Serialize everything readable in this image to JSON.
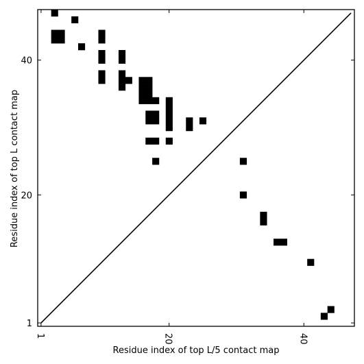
{
  "chart_data": {
    "type": "heatmap",
    "title": "",
    "xlabel": "Residue index of top L/5 contact map",
    "ylabel": "Residue index of top L contact map",
    "xlim": [
      0.5,
      47.5
    ],
    "ylim": [
      0.5,
      47.5
    ],
    "xticks": [
      1,
      20,
      40
    ],
    "yticks": [
      1,
      20,
      40
    ],
    "xtick_labels": [
      "1",
      "20",
      "40"
    ],
    "ytick_labels": [
      "1",
      "20",
      "40"
    ],
    "xtick_rotation": "vertical",
    "diagonal": "line from (1,1) to (47,47)",
    "cell_color": "#000000",
    "background_color": "#ffffff",
    "upper_triangle_contacts_top_L": [
      [
        3,
        47
      ],
      [
        3,
        44
      ],
      [
        3,
        43
      ],
      [
        4,
        44
      ],
      [
        4,
        43
      ],
      [
        6,
        46
      ],
      [
        7,
        42
      ],
      [
        10,
        44
      ],
      [
        10,
        43
      ],
      [
        10,
        41
      ],
      [
        10,
        40
      ],
      [
        10,
        38
      ],
      [
        10,
        37
      ],
      [
        13,
        41
      ],
      [
        13,
        40
      ],
      [
        13,
        38
      ],
      [
        13,
        37
      ],
      [
        13,
        36
      ],
      [
        14,
        37
      ],
      [
        16,
        37
      ],
      [
        16,
        36
      ],
      [
        16,
        35
      ],
      [
        16,
        34
      ],
      [
        17,
        37
      ],
      [
        17,
        36
      ],
      [
        17,
        35
      ],
      [
        17,
        34
      ],
      [
        17,
        32
      ],
      [
        17,
        31
      ],
      [
        17,
        28
      ],
      [
        18,
        34
      ],
      [
        18,
        32
      ],
      [
        18,
        31
      ],
      [
        18,
        28
      ],
      [
        18,
        25
      ],
      [
        20,
        34
      ],
      [
        20,
        33
      ],
      [
        20,
        32
      ],
      [
        20,
        31
      ],
      [
        20,
        30
      ],
      [
        20,
        28
      ],
      [
        23,
        31
      ],
      [
        23,
        30
      ],
      [
        25,
        31
      ]
    ],
    "lower_triangle_contacts_top_L5": [
      [
        31,
        25
      ],
      [
        31,
        20
      ],
      [
        34,
        16
      ],
      [
        34,
        17
      ],
      [
        36,
        13
      ],
      [
        37,
        13
      ],
      [
        41,
        10
      ],
      [
        43,
        2
      ],
      [
        44,
        3
      ]
    ]
  }
}
